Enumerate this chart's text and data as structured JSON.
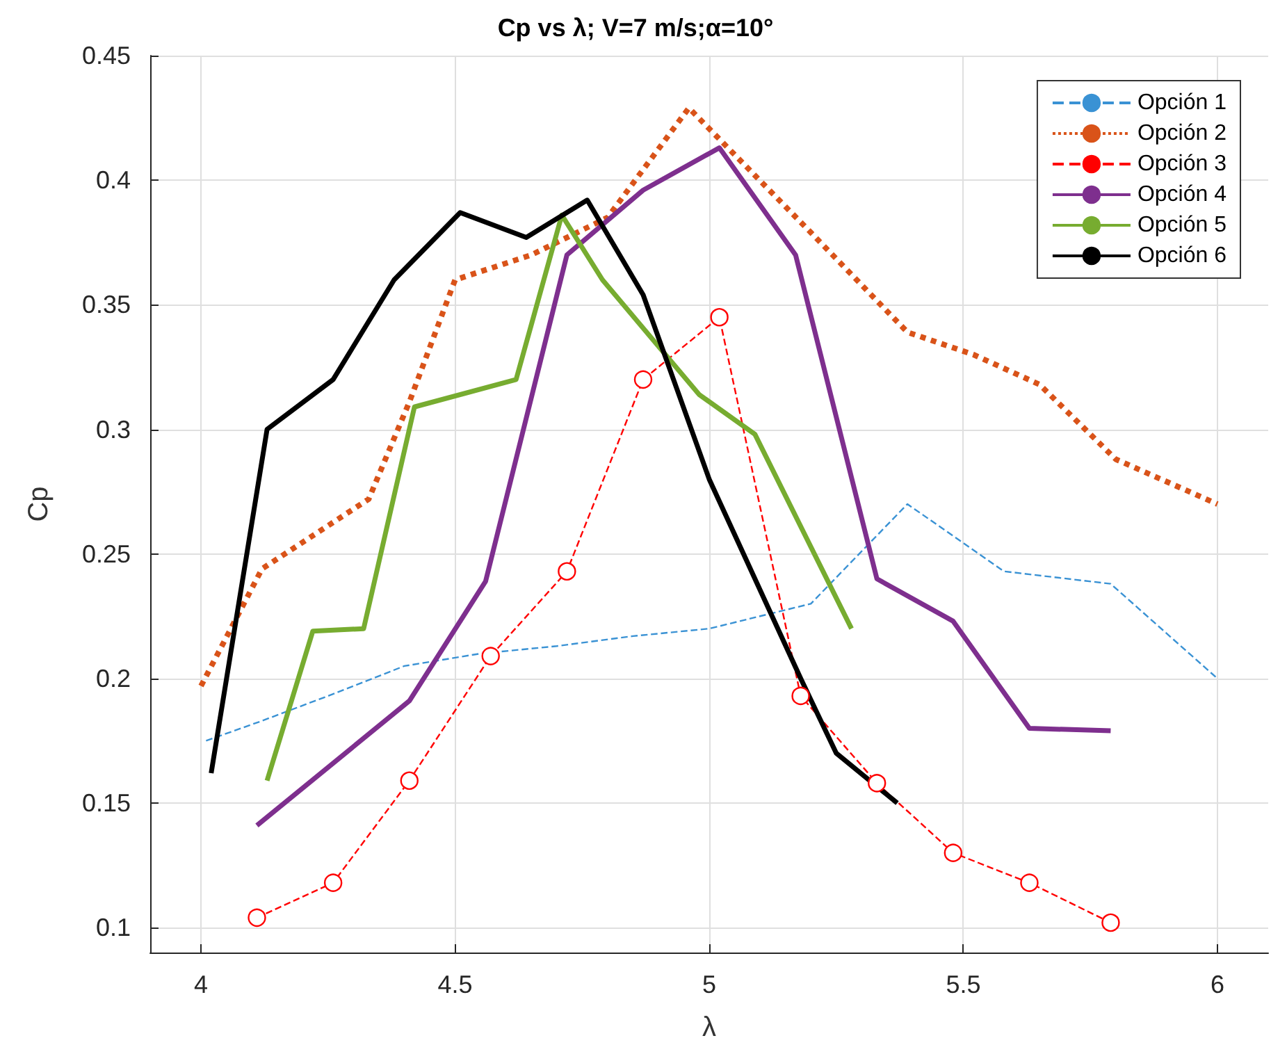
{
  "chart_data": {
    "type": "line",
    "title": "Cp vs λ; V=7 m/s;α=10°",
    "xlabel": "λ",
    "ylabel": "Cp",
    "xlim": [
      3.9,
      6.1
    ],
    "ylim": [
      0.09,
      0.45
    ],
    "xticks": [
      4,
      4.5,
      5,
      5.5,
      6
    ],
    "yticks": [
      0.1,
      0.15,
      0.2,
      0.25,
      0.3,
      0.35,
      0.4,
      0.45
    ],
    "grid": true,
    "legend": "top right",
    "series": [
      {
        "name": "Opción 1",
        "color": "#3a92d4",
        "line_style": "dashed",
        "marker": "none",
        "x": [
          4.01,
          4.12,
          4.25,
          4.4,
          4.55,
          4.7,
          4.85,
          5.0,
          5.2,
          5.39,
          5.58,
          5.79,
          6.0
        ],
        "values": [
          0.175,
          0.183,
          0.193,
          0.205,
          0.21,
          0.213,
          0.217,
          0.22,
          0.23,
          0.27,
          0.243,
          0.238,
          0.2
        ]
      },
      {
        "name": "Opción 2",
        "color": "#d95319",
        "line_style": "dotted",
        "marker": "none",
        "x": [
          4.0,
          4.12,
          4.33,
          4.41,
          4.5,
          4.65,
          4.8,
          4.96,
          5.2,
          5.39,
          5.52,
          5.65,
          5.8,
          6.0
        ],
        "values": [
          0.197,
          0.244,
          0.272,
          0.311,
          0.36,
          0.37,
          0.385,
          0.429,
          0.379,
          0.339,
          0.33,
          0.318,
          0.288,
          0.27
        ]
      },
      {
        "name": "Opción 3",
        "color": "#ff0000",
        "line_style": "dashed",
        "marker": "circle",
        "x": [
          4.11,
          4.26,
          4.41,
          4.57,
          4.72,
          4.87,
          5.02,
          5.18,
          5.33,
          5.48,
          5.63,
          5.79
        ],
        "values": [
          0.104,
          0.118,
          0.159,
          0.209,
          0.243,
          0.32,
          0.345,
          0.193,
          0.158,
          0.13,
          0.118,
          0.102
        ]
      },
      {
        "name": "Opción 4",
        "color": "#7e2f8e",
        "line_style": "solid",
        "marker": "none",
        "x": [
          4.11,
          4.41,
          4.56,
          4.72,
          4.87,
          5.02,
          5.17,
          5.33,
          5.48,
          5.63,
          5.79
        ],
        "values": [
          0.141,
          0.191,
          0.239,
          0.37,
          0.396,
          0.413,
          0.37,
          0.24,
          0.223,
          0.18,
          0.179
        ]
      },
      {
        "name": "Opción 5",
        "color": "#77ac30",
        "line_style": "solid",
        "marker": "none",
        "x": [
          4.13,
          4.22,
          4.32,
          4.42,
          4.62,
          4.71,
          4.79,
          4.98,
          5.09,
          5.28
        ],
        "values": [
          0.159,
          0.219,
          0.22,
          0.309,
          0.32,
          0.386,
          0.36,
          0.314,
          0.298,
          0.22
        ]
      },
      {
        "name": "Opción 6",
        "color": "#000000",
        "line_style": "solid",
        "marker": "none",
        "x": [
          4.02,
          4.13,
          4.26,
          4.38,
          4.51,
          4.64,
          4.76,
          4.87,
          5.0,
          5.18,
          5.25,
          5.37
        ],
        "values": [
          0.162,
          0.3,
          0.32,
          0.36,
          0.387,
          0.377,
          0.392,
          0.354,
          0.28,
          0.2,
          0.17,
          0.15
        ]
      }
    ]
  }
}
